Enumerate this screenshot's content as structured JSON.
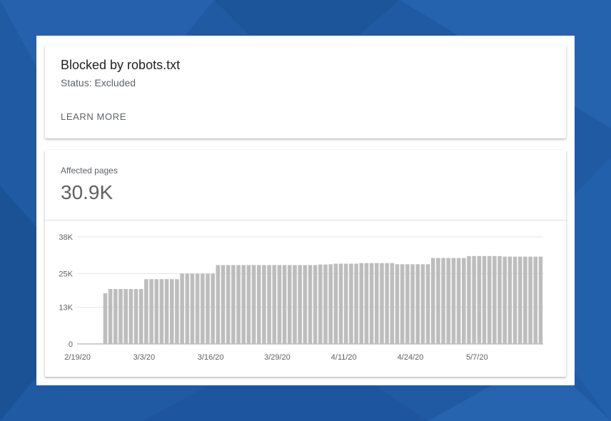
{
  "card": {
    "title": "Blocked by robots.txt",
    "status": "Status: Excluded",
    "learn_more": "LEARN MORE"
  },
  "metric": {
    "label": "Affected pages",
    "value": "30.9K"
  },
  "colors": {
    "background": "#1f5aa3",
    "bar": "#bdbdbd",
    "gridline": "#e6e6e6"
  },
  "chart_data": {
    "type": "bar",
    "ylim": [
      0,
      38000
    ],
    "yticks": [
      {
        "value": 0,
        "label": "0"
      },
      {
        "value": 13000,
        "label": "13K"
      },
      {
        "value": 25000,
        "label": "25K"
      },
      {
        "value": 38000,
        "label": "38K"
      }
    ],
    "xticks": [
      "2/19/20",
      "3/3/20",
      "3/16/20",
      "3/29/20",
      "4/11/20",
      "4/24/20",
      "5/7/20"
    ],
    "x_start_label": "2/19/20",
    "values": [
      0,
      0,
      0,
      0,
      0,
      18000,
      19500,
      19500,
      19500,
      19500,
      19500,
      19500,
      19500,
      23000,
      23000,
      23000,
      23000,
      23000,
      23000,
      23000,
      25000,
      25000,
      25000,
      25000,
      25000,
      25000,
      25000,
      28000,
      28000,
      28000,
      28000,
      28000,
      28000,
      28000,
      28000,
      28000,
      28000,
      28000,
      28000,
      28000,
      28000,
      28000,
      28000,
      28000,
      28000,
      28000,
      28000,
      28200,
      28200,
      28300,
      28500,
      28500,
      28500,
      28500,
      28500,
      28700,
      28700,
      28700,
      28700,
      28700,
      28700,
      28700,
      28300,
      28300,
      28300,
      28300,
      28300,
      28300,
      28300,
      30500,
      30500,
      30500,
      30500,
      30500,
      30500,
      30500,
      31200,
      31200,
      31200,
      31200,
      31200,
      31200,
      31200,
      31000,
      31000,
      31000,
      31000,
      31000,
      31000,
      31000,
      31000
    ]
  }
}
